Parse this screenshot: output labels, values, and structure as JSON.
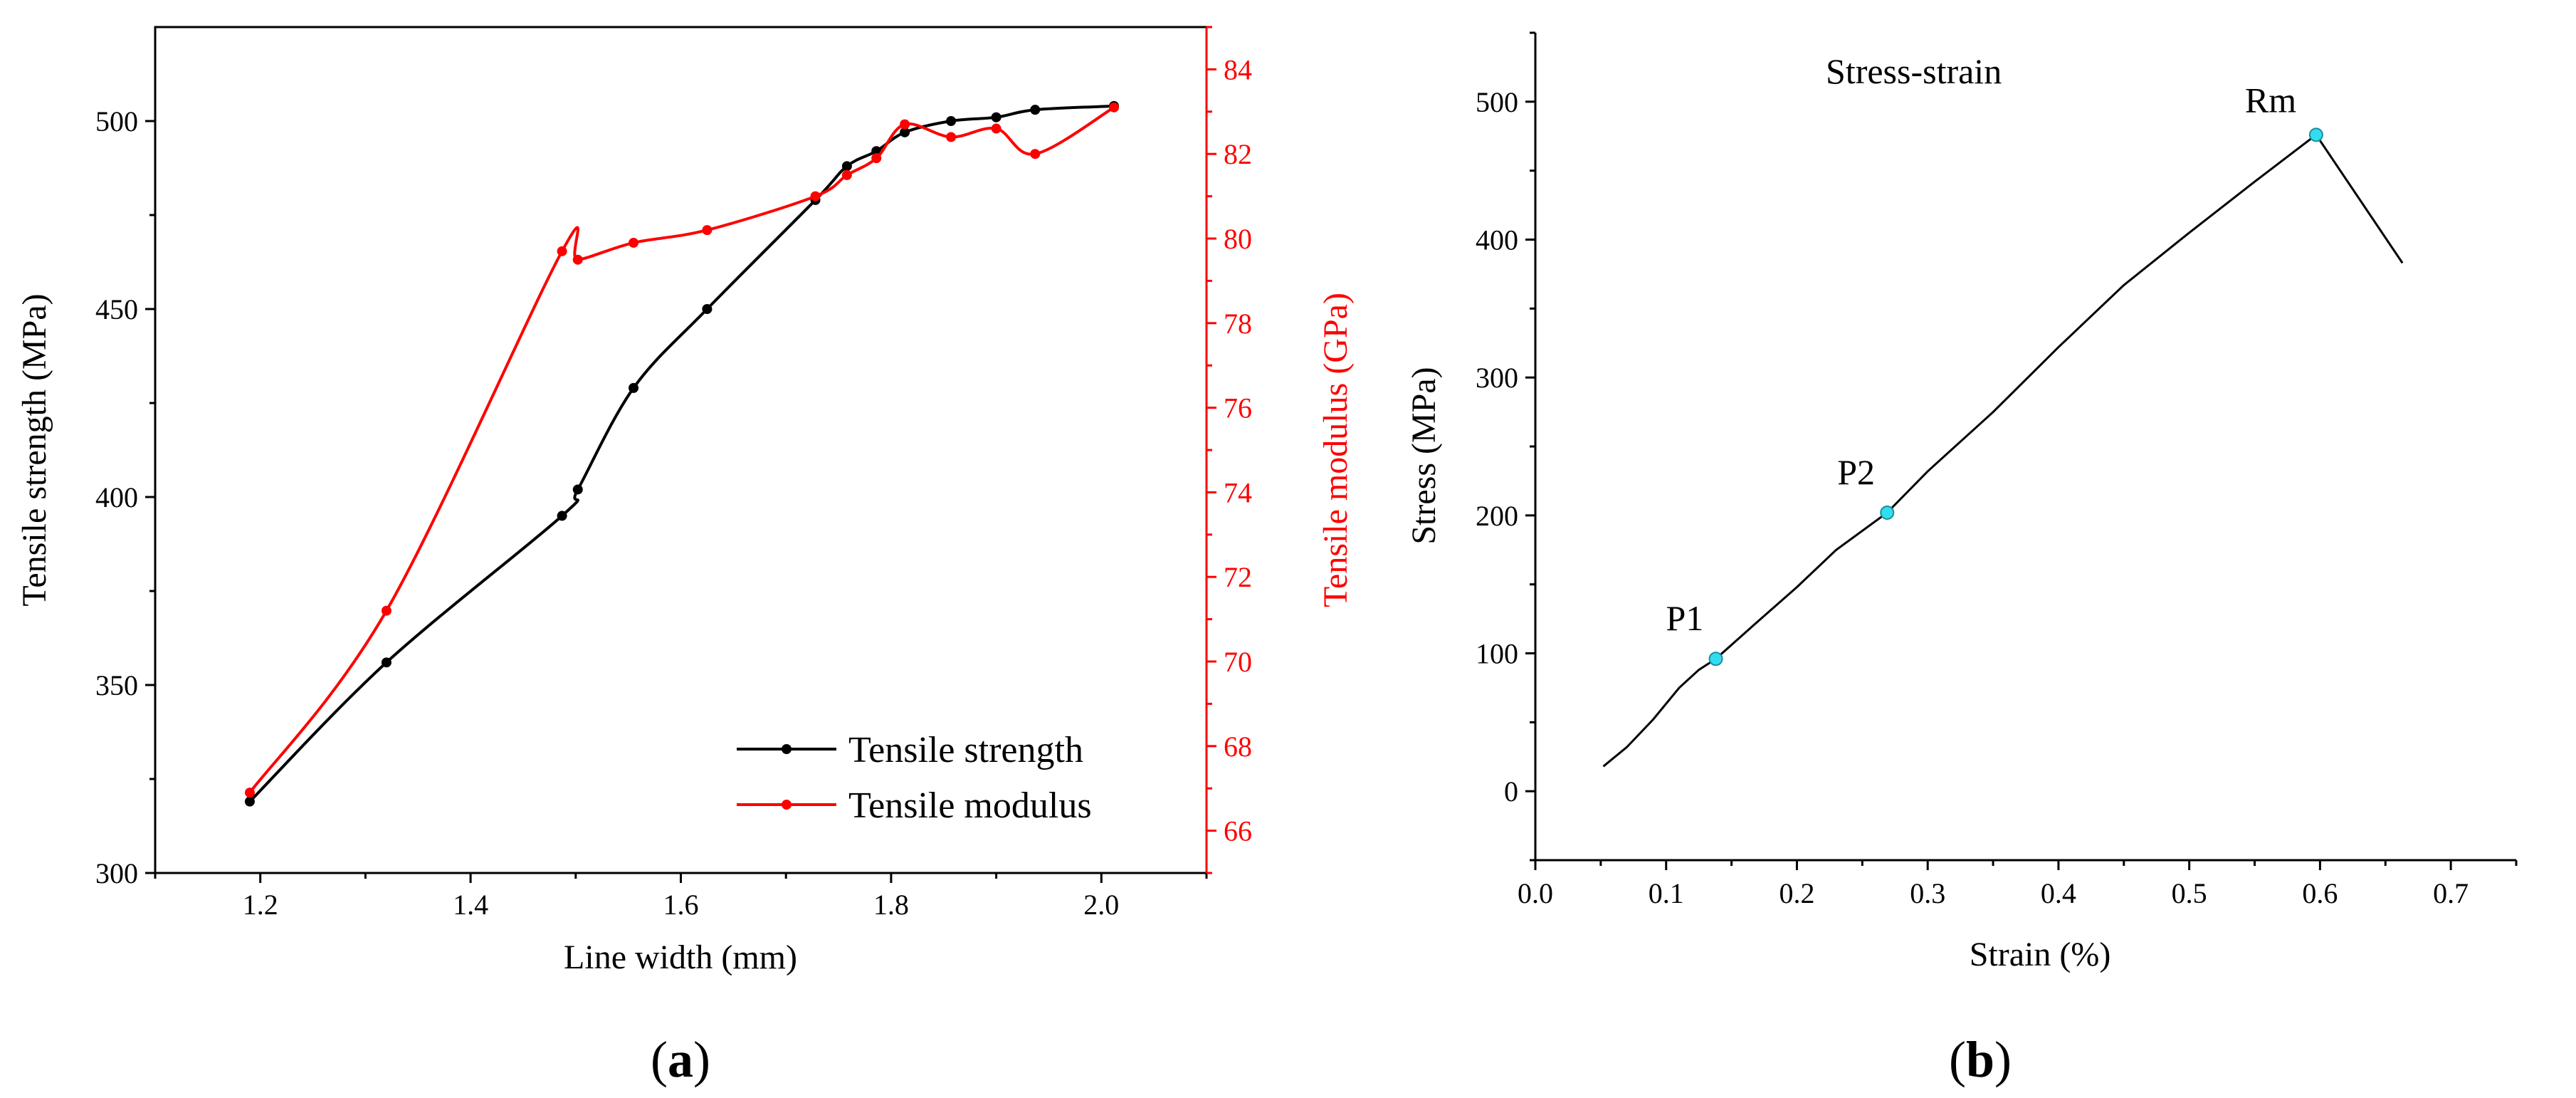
{
  "chart_data": [
    {
      "type": "line",
      "caption": {
        "open": "(",
        "letter": "a",
        "close": ")"
      },
      "xlabel": "Line width (mm)",
      "ylabel": "Tensile strength (MPa)",
      "y2label": "Tensile modulus (GPa)",
      "xlim": [
        1.1,
        2.1
      ],
      "ylim": [
        300,
        525
      ],
      "y2lim": [
        65,
        85
      ],
      "xticks": [
        "1.2",
        "1.4",
        "1.6",
        "1.8",
        "2.0"
      ],
      "yticks": [
        "300",
        "350",
        "400",
        "450",
        "500"
      ],
      "y2ticks": [
        "66",
        "68",
        "70",
        "72",
        "74",
        "76",
        "78",
        "80",
        "82",
        "84"
      ],
      "series": [
        {
          "name": "Tensile strength",
          "color": "#000000",
          "axis": "left",
          "x": [
            1.19,
            1.32,
            1.487,
            1.502,
            1.555,
            1.625,
            1.728,
            1.758,
            1.786,
            1.813,
            1.857,
            1.9,
            1.937,
            2.012
          ],
          "values": [
            319,
            356,
            395,
            402,
            429,
            450,
            479,
            488,
            492,
            497,
            500,
            501,
            503,
            504
          ]
        },
        {
          "name": "Tensile modulus",
          "color": "#ff0000",
          "axis": "right",
          "x": [
            1.19,
            1.32,
            1.487,
            1.502,
            1.555,
            1.625,
            1.728,
            1.758,
            1.786,
            1.813,
            1.857,
            1.9,
            1.937,
            2.012
          ],
          "values": [
            66.9,
            71.2,
            79.7,
            79.5,
            79.9,
            80.2,
            81.0,
            81.5,
            81.9,
            82.7,
            82.4,
            82.6,
            82.0,
            83.1
          ]
        }
      ],
      "legend": {
        "position": "bottom-right",
        "entries": [
          "Tensile strength",
          "Tensile modulus"
        ]
      }
    },
    {
      "type": "line",
      "caption": {
        "open": "(",
        "letter": "b",
        "close": ")"
      },
      "title": "Stress-strain",
      "xlabel": "Strain (%)",
      "ylabel": "Stress (MPa)",
      "xlim": [
        0.0,
        0.75
      ],
      "ylim": [
        -50,
        550
      ],
      "xticks": [
        "0.0",
        "0.1",
        "0.2",
        "0.3",
        "0.4",
        "0.5",
        "0.6",
        "0.7"
      ],
      "yticks": [
        "0",
        "100",
        "200",
        "300",
        "400",
        "500"
      ],
      "series": [
        {
          "name": "Stress-strain",
          "color": "#000000",
          "x": [
            0.052,
            0.07,
            0.09,
            0.11,
            0.125,
            0.138,
            0.17,
            0.2,
            0.23,
            0.269,
            0.3,
            0.35,
            0.4,
            0.45,
            0.5,
            0.55,
            0.597,
            0.663
          ],
          "values": [
            18,
            32,
            52,
            75,
            88,
            96,
            123,
            148,
            175,
            202,
            232,
            275,
            322,
            367,
            405,
            442,
            476,
            383
          ]
        }
      ],
      "points": [
        {
          "label": "P1",
          "x": 0.138,
          "y": 96,
          "color": "#33ddee"
        },
        {
          "label": "P2",
          "x": 0.269,
          "y": 202,
          "color": "#33ddee"
        },
        {
          "label": "Rm",
          "x": 0.597,
          "y": 476,
          "color": "#33ddee"
        }
      ]
    }
  ]
}
